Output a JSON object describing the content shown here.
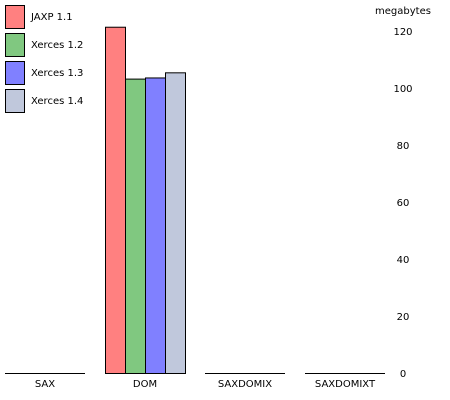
{
  "chart_data": {
    "type": "bar",
    "title": "",
    "xlabel": "",
    "ylabel": "megabytes",
    "ylim": [
      0,
      120
    ],
    "yticks": [
      0,
      20,
      40,
      60,
      80,
      100,
      120
    ],
    "y_axis_side": "right",
    "grid": false,
    "legend_position": "top-left",
    "categories": [
      "SAX",
      "DOM",
      "SAXDOMIX",
      "SAXDOMIXT"
    ],
    "series": [
      {
        "name": "JAXP 1.1",
        "color": "#ff8080",
        "values": [
          0,
          121.5,
          0,
          0
        ]
      },
      {
        "name": "Xerces 1.2",
        "color": "#80c880",
        "values": [
          0,
          103.3,
          0,
          0
        ]
      },
      {
        "name": "Xerces 1.3",
        "color": "#8080ff",
        "values": [
          0,
          103.7,
          0,
          0
        ]
      },
      {
        "name": "Xerces 1.4",
        "color": "#c0c8dc",
        "values": [
          0,
          105.5,
          0,
          0
        ]
      }
    ]
  }
}
